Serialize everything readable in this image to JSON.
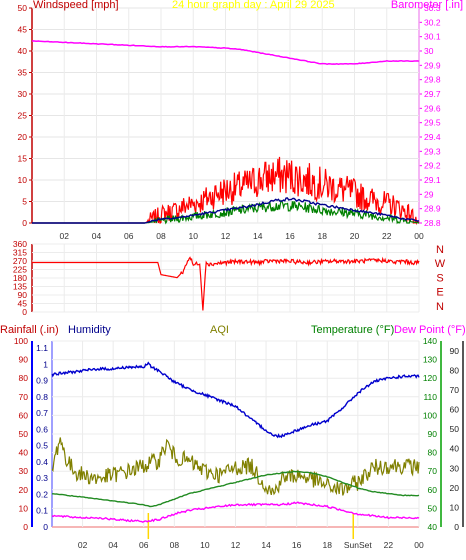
{
  "chart_data": [
    {
      "type": "line",
      "title": "24 hour graph day : April 29 2025",
      "ylabel_left": "Windspeed [mph]",
      "ylabel_right": "Barometer [.in]",
      "x_ticks": [
        "02",
        "04",
        "06",
        "08",
        "10",
        "12",
        "14",
        "16",
        "18",
        "20",
        "22",
        "00"
      ],
      "x_range": [
        0,
        24
      ],
      "y_left_ticks": [
        0,
        5,
        10,
        15,
        20,
        25,
        30,
        35,
        40,
        45,
        50
      ],
      "y_left_range": [
        0,
        50
      ],
      "y_right_ticks": [
        "28.8",
        "28.9",
        "29",
        "29.1",
        "29.2",
        "29.3",
        "29.4",
        "29.5",
        "29.6",
        "29.7",
        "29.8",
        "29.9",
        "30",
        "30.1",
        "30.2",
        "30.3"
      ],
      "y_right_range": [
        28.8,
        30.3
      ],
      "series": [
        {
          "name": "wind-gust",
          "axis": "left",
          "color": "#ff0000",
          "x": [
            0,
            1,
            2,
            3,
            4,
            5,
            6,
            7,
            7.5,
            8,
            8.5,
            9,
            9.5,
            10,
            10.5,
            11,
            11.5,
            12,
            12.5,
            13,
            13.5,
            14,
            14.5,
            15,
            15.5,
            16,
            16.5,
            17,
            17.5,
            18,
            18.5,
            19,
            19.5,
            20,
            20.5,
            21,
            21.5,
            22,
            22.5,
            23,
            23.5,
            24
          ],
          "y": [
            0,
            0,
            0,
            0,
            0,
            0,
            0,
            0,
            1,
            2,
            2.5,
            3,
            4,
            4.5,
            5,
            6,
            7,
            7.5,
            8,
            8.5,
            9,
            10,
            10.5,
            11,
            11,
            11,
            10.5,
            10,
            9.5,
            9,
            8.5,
            8,
            7.5,
            7,
            6,
            5.5,
            5,
            4.5,
            4,
            3,
            2,
            0
          ]
        },
        {
          "name": "wind-speed",
          "axis": "left",
          "color": "#00008b",
          "x": [
            0,
            6,
            7,
            8,
            9,
            10,
            11,
            12,
            13,
            14,
            15,
            16,
            17,
            18,
            19,
            20,
            21,
            22,
            23,
            24
          ],
          "y": [
            0,
            0,
            0,
            1,
            1.2,
            1.8,
            2.4,
            3,
            3.6,
            4.3,
            5.2,
            5.6,
            5,
            4.2,
            3.6,
            3,
            2.4,
            1.8,
            1,
            0.5
          ]
        },
        {
          "name": "wind-avg",
          "axis": "left",
          "color": "#008000",
          "x": [
            0,
            7,
            8,
            9,
            10,
            11,
            12,
            13,
            14,
            15,
            16,
            17,
            18,
            19,
            20,
            21,
            22,
            23,
            24
          ],
          "y": [
            0,
            0,
            0.5,
            1,
            1.5,
            2,
            2.5,
            3,
            3.5,
            4,
            4,
            3.6,
            3,
            2.6,
            2.2,
            1.8,
            1.2,
            0.6,
            0
          ]
        },
        {
          "name": "barometer",
          "axis": "right",
          "color": "#ff00ff",
          "x": [
            0,
            2,
            4,
            6,
            8,
            10,
            12,
            13,
            14,
            15,
            16,
            17,
            18,
            20,
            22,
            24
          ],
          "y": [
            30.07,
            30.06,
            30.05,
            30.04,
            30.03,
            30.03,
            30.02,
            30.01,
            29.99,
            29.97,
            29.95,
            29.93,
            29.91,
            29.91,
            29.93,
            29.93
          ]
        }
      ]
    },
    {
      "type": "line",
      "title": "",
      "y_ticks": [
        0,
        45,
        90,
        135,
        180,
        225,
        270,
        315,
        360
      ],
      "y_range": [
        0,
        360
      ],
      "direction_labels": [
        "N",
        "W",
        "S",
        "E",
        "N"
      ],
      "series": [
        {
          "name": "wind-direction",
          "color": "#ff0000",
          "x": [
            0,
            1,
            2,
            3,
            4,
            5,
            6,
            7,
            7.5,
            7.8,
            8,
            8.5,
            9,
            9.4,
            9.6,
            9.8,
            10,
            10.4,
            10.6,
            10.8,
            11,
            11.5,
            12,
            13,
            14,
            15,
            16,
            17,
            18,
            19,
            20,
            21,
            22,
            22.5,
            23,
            23.5,
            24
          ],
          "y": [
            262,
            262,
            262,
            262,
            262,
            262,
            262,
            262,
            262,
            262,
            198,
            190,
            182,
            218,
            262,
            292,
            248,
            262,
            8,
            268,
            252,
            258,
            262,
            268,
            262,
            272,
            268,
            262,
            266,
            270,
            268,
            272,
            272,
            262,
            270,
            262,
            262
          ]
        }
      ]
    },
    {
      "type": "line",
      "title": "AQI",
      "ylabel_left_1": "Rainfall (.in)",
      "ylabel_left_2": "Humidity",
      "ylabel_right_1": "Temperature (°F)",
      "ylabel_right_2": "Dew Point (°F)",
      "x_ticks": [
        "02",
        "04",
        "06",
        "08",
        "10",
        "12",
        "14",
        "16",
        "18",
        "SunSet",
        "22",
        "00"
      ],
      "sunrise_x": 6.3,
      "sunset_x": 19.7,
      "y_left_ticks_1": [
        0,
        10,
        20,
        30,
        40,
        50,
        60,
        70,
        80,
        90,
        100
      ],
      "y_left_ticks_2": [
        "0",
        "0.1",
        "0.2",
        "0.3",
        "0.4",
        "0.5",
        "0.6",
        "0.7",
        "0.8",
        "0.9",
        "1",
        "1.1"
      ],
      "y_right_ticks_1": [
        40,
        50,
        60,
        70,
        80,
        90,
        100,
        110,
        120,
        130,
        140
      ],
      "y_right_ticks_2": [
        0,
        10,
        20,
        30,
        40,
        50,
        60,
        70,
        80,
        90
      ],
      "series": [
        {
          "name": "humidity",
          "axis": "left_1",
          "color": "#0000cd",
          "x": [
            0,
            1,
            2,
            3,
            4,
            5,
            6,
            6.3,
            6.5,
            7,
            8,
            9,
            10,
            11,
            12,
            13,
            14,
            14.5,
            15,
            16,
            17,
            18,
            19,
            20,
            21,
            22,
            23,
            24
          ],
          "y": [
            82,
            83,
            84,
            85,
            85,
            86,
            86,
            88,
            86,
            84,
            78,
            74,
            71,
            68,
            65,
            58,
            52,
            49,
            49,
            52,
            55,
            57,
            64,
            72,
            78,
            80,
            81,
            81
          ]
        },
        {
          "name": "AQI",
          "axis": "left_1",
          "color": "#808000",
          "x": [
            0,
            0.5,
            1,
            1.5,
            2,
            3,
            4,
            5,
            6,
            7,
            7.5,
            8,
            9,
            10,
            11,
            12,
            13,
            14,
            14.5,
            15,
            16,
            17,
            18,
            19,
            20,
            21,
            22,
            23,
            24
          ],
          "y": [
            30,
            48,
            35,
            30,
            28,
            26,
            28,
            30,
            33,
            36,
            45,
            38,
            35,
            30,
            28,
            32,
            33,
            22,
            18,
            26,
            28,
            26,
            22,
            20,
            24,
            32,
            33,
            33,
            32
          ]
        },
        {
          "name": "temperature",
          "axis": "right_1",
          "color": "#228b22",
          "x": [
            0,
            1,
            2,
            3,
            4,
            5,
            6,
            6.5,
            7,
            8,
            9,
            10,
            11,
            12,
            13,
            14,
            15,
            16,
            17,
            18,
            19,
            20,
            21,
            22,
            23,
            24
          ],
          "y": [
            58,
            57,
            56,
            55,
            54,
            53,
            52,
            51,
            52,
            55,
            58,
            60,
            62,
            64,
            66,
            68,
            69,
            70,
            69,
            67,
            64,
            61,
            59,
            58,
            57,
            57
          ]
        },
        {
          "name": "dew-point",
          "axis": "right_1",
          "color": "#ff00ff",
          "x": [
            0,
            1,
            2,
            3,
            4,
            5,
            6,
            7,
            8,
            9,
            10,
            11,
            12,
            13,
            14,
            15,
            16,
            17,
            18,
            19,
            20,
            21,
            22,
            23,
            24
          ],
          "y": [
            46,
            45.5,
            45,
            45,
            44,
            43.5,
            43,
            44,
            47,
            49,
            50,
            51,
            52,
            52,
            52,
            52,
            53,
            52,
            51,
            49,
            47,
            46,
            45,
            45,
            45
          ]
        }
      ]
    }
  ]
}
